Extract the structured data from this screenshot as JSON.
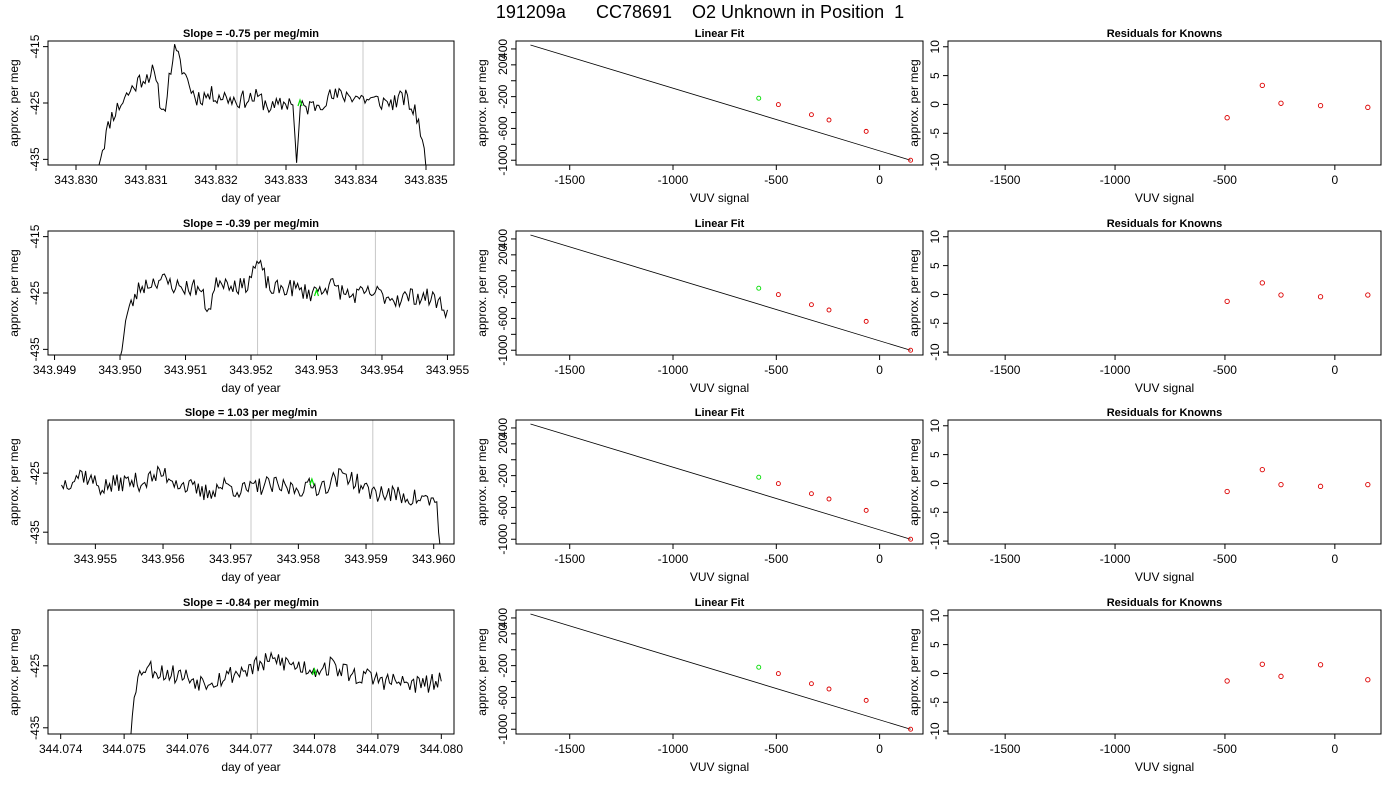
{
  "page": {
    "title": "191209a      CC78691    O2 Unknown in Position  1"
  },
  "colors": {
    "trace": "#000000",
    "marker": "#00dd00",
    "known_points": "#dd0000",
    "vertical_lines": "#c8c8c8"
  },
  "chart_data": [
    {
      "type": "line",
      "title": "Slope =  -0.75  per meg/min",
      "xlabel": "day of year",
      "ylabel": "approx. per meg",
      "xlim": [
        343.8296,
        343.8354
      ],
      "ylim": [
        -436,
        -414
      ],
      "xticks": [
        343.83,
        343.831,
        343.832,
        343.833,
        343.834,
        343.835
      ],
      "xtick_labels": [
        "343.830",
        "343.831",
        "343.832",
        "343.833",
        "343.834",
        "343.835"
      ],
      "yticks": [
        -435,
        -425,
        -415
      ],
      "ytick_labels": [
        "-435",
        "-425",
        "-415"
      ],
      "vlines": [
        343.8323,
        343.8341
      ],
      "marker_x": 343.8332,
      "trace": {
        "x_start": 343.8303,
        "x_end": 343.835,
        "seed": 11,
        "anchors": [
          [
            343.8303,
            -436.5
          ],
          [
            343.8305,
            -427.5
          ],
          [
            343.8307,
            -424
          ],
          [
            343.8309,
            -421
          ],
          [
            343.8311,
            -419.5
          ],
          [
            343.83125,
            -427
          ],
          [
            343.8314,
            -415.5
          ],
          [
            343.8317,
            -424
          ],
          [
            343.832,
            -423.5
          ],
          [
            343.8323,
            -424.5
          ],
          [
            343.8326,
            -424
          ],
          [
            343.8328,
            -426
          ],
          [
            343.8331,
            -424.5
          ],
          [
            343.83315,
            -436.5
          ],
          [
            343.8332,
            -426
          ],
          [
            343.8334,
            -425.5
          ],
          [
            343.8336,
            -424
          ],
          [
            343.8339,
            -423.5
          ],
          [
            343.8342,
            -424.5
          ],
          [
            343.8345,
            -425
          ],
          [
            343.8347,
            -424
          ],
          [
            343.8349,
            -428
          ],
          [
            343.835,
            -436.5
          ]
        ]
      }
    },
    {
      "type": "line",
      "title": "Linear Fit",
      "xlabel": "VUV signal",
      "ylabel": "approx. per meg",
      "xlim": [
        -1760,
        210
      ],
      "ylim": [
        -1060,
        500
      ],
      "xticks": [
        -1500,
        -1000,
        -500,
        0
      ],
      "xtick_labels": [
        "-1500",
        "-1000",
        "-500",
        "0"
      ],
      "yticks": [
        -1000,
        -800,
        -600,
        -400,
        -200,
        0,
        200,
        400
      ],
      "ytick_labels": [
        "-1000",
        "",
        "-600",
        "",
        "-200",
        "",
        "200",
        "400"
      ],
      "fit_line": [
        [
          -1690,
          450
        ],
        [
          150,
          -1000
        ]
      ],
      "knowns": {
        "x": [
          -490,
          -330,
          -245,
          -65,
          150
        ],
        "y": [
          -300,
          -427,
          -494,
          -637,
          -1000
        ]
      },
      "unknown": {
        "x": [
          -585
        ],
        "y": [
          -220
        ]
      }
    },
    {
      "type": "scatter",
      "title": "Residuals for Knowns",
      "xlabel": "VUV signal",
      "ylabel": "approx. per meg",
      "xlim": [
        -1760,
        210
      ],
      "ylim": [
        -10.5,
        11
      ],
      "xticks": [
        -1500,
        -1000,
        -500,
        0
      ],
      "xtick_labels": [
        "-1500",
        "-1000",
        "-500",
        "0"
      ],
      "yticks": [
        -10,
        -5,
        0,
        5,
        10
      ],
      "ytick_labels": [
        "-10",
        "-5",
        "0",
        "5",
        "10"
      ],
      "points": {
        "x": [
          -490,
          -330,
          -245,
          -65,
          150
        ],
        "y": [
          -2.3,
          3.3,
          0.2,
          -0.2,
          -0.5
        ]
      }
    },
    {
      "type": "line",
      "title": "Slope =  -0.39  per meg/min",
      "xlabel": "day of year",
      "ylabel": "approx. per meg",
      "xlim": [
        343.9489,
        343.9551
      ],
      "ylim": [
        -436,
        -414
      ],
      "xticks": [
        343.949,
        343.95,
        343.951,
        343.952,
        343.953,
        343.954,
        343.955
      ],
      "xtick_labels": [
        "343.949",
        "343.950",
        "343.951",
        "343.952",
        "343.953",
        "343.954",
        "343.955"
      ],
      "yticks": [
        -435,
        -425,
        -415
      ],
      "ytick_labels": [
        "-435",
        "-425",
        "-415"
      ],
      "vlines": [
        343.9521,
        343.9539
      ],
      "marker_x": 343.953,
      "trace": {
        "x_start": 343.95,
        "x_end": 343.955,
        "seed": 23,
        "anchors": [
          [
            343.95,
            -436.5
          ],
          [
            343.9501,
            -429
          ],
          [
            343.9503,
            -424
          ],
          [
            343.9506,
            -422.5
          ],
          [
            343.9509,
            -424
          ],
          [
            343.9512,
            -424
          ],
          [
            343.95135,
            -428
          ],
          [
            343.9515,
            -422.5
          ],
          [
            343.9519,
            -424
          ],
          [
            343.9521,
            -419.5
          ],
          [
            343.9523,
            -424.5
          ],
          [
            343.9526,
            -424
          ],
          [
            343.9529,
            -425
          ],
          [
            343.9532,
            -423.5
          ],
          [
            343.9535,
            -425.5
          ],
          [
            343.9539,
            -425
          ],
          [
            343.9542,
            -426
          ],
          [
            343.9545,
            -425.5
          ],
          [
            343.9548,
            -426
          ],
          [
            343.955,
            -428
          ]
        ]
      }
    },
    {
      "type": "line",
      "title": "Linear Fit",
      "xlabel": "VUV signal",
      "ylabel": "approx. per meg",
      "xlim": [
        -1760,
        210
      ],
      "ylim": [
        -1060,
        500
      ],
      "xticks": [
        -1500,
        -1000,
        -500,
        0
      ],
      "xtick_labels": [
        "-1500",
        "-1000",
        "-500",
        "0"
      ],
      "yticks": [
        -1000,
        -800,
        -600,
        -400,
        -200,
        0,
        200,
        400
      ],
      "ytick_labels": [
        "-1000",
        "",
        "-600",
        "",
        "-200",
        "",
        "200",
        "400"
      ],
      "fit_line": [
        [
          -1690,
          450
        ],
        [
          150,
          -1000
        ]
      ],
      "knowns": {
        "x": [
          -490,
          -330,
          -245,
          -65,
          150
        ],
        "y": [
          -300,
          -427,
          -494,
          -637,
          -1000
        ]
      },
      "unknown": {
        "x": [
          -585
        ],
        "y": [
          -220
        ]
      }
    },
    {
      "type": "scatter",
      "title": "Residuals for Knowns",
      "xlabel": "VUV signal",
      "ylabel": "approx. per meg",
      "xlim": [
        -1760,
        210
      ],
      "ylim": [
        -10.5,
        11
      ],
      "xticks": [
        -1500,
        -1000,
        -500,
        0
      ],
      "xtick_labels": [
        "-1500",
        "-1000",
        "-500",
        "0"
      ],
      "yticks": [
        -10,
        -5,
        0,
        5,
        10
      ],
      "ytick_labels": [
        "-10",
        "-5",
        "0",
        "5",
        "10"
      ],
      "points": {
        "x": [
          -490,
          -330,
          -245,
          -65,
          150
        ],
        "y": [
          -1.2,
          2.0,
          -0.1,
          -0.4,
          -0.1
        ]
      }
    },
    {
      "type": "line",
      "title": "Slope =  1.03  per meg/min",
      "xlabel": "day of year",
      "ylabel": "approx. per meg",
      "xlim": [
        343.9543,
        343.9603
      ],
      "ylim": [
        -437,
        -416
      ],
      "xticks": [
        343.955,
        343.956,
        343.957,
        343.958,
        343.959,
        343.96
      ],
      "xtick_labels": [
        "343.955",
        "343.956",
        "343.957",
        "343.958",
        "343.959",
        "343.960"
      ],
      "yticks": [
        -435,
        -425
      ],
      "ytick_labels": [
        "-435",
        "-425"
      ],
      "vlines": [
        343.9573,
        343.9591
      ],
      "marker_x": 343.9582,
      "trace": {
        "x_start": 343.9545,
        "x_end": 343.9601,
        "seed": 37,
        "anchors": [
          [
            343.9545,
            -427
          ],
          [
            343.9548,
            -425
          ],
          [
            343.9551,
            -427.5
          ],
          [
            343.9554,
            -426.5
          ],
          [
            343.9557,
            -426.5
          ],
          [
            343.956,
            -425
          ],
          [
            343.9563,
            -427
          ],
          [
            343.9566,
            -428.5
          ],
          [
            343.9569,
            -427
          ],
          [
            343.9572,
            -428
          ],
          [
            343.9575,
            -427
          ],
          [
            343.9578,
            -427.5
          ],
          [
            343.9581,
            -427.5
          ],
          [
            343.9584,
            -427
          ],
          [
            343.9587,
            -425
          ],
          [
            343.959,
            -428
          ],
          [
            343.9593,
            -428.5
          ],
          [
            343.9596,
            -429
          ],
          [
            343.9599,
            -429.5
          ],
          [
            343.96005,
            -430
          ],
          [
            343.9601,
            -438
          ]
        ]
      }
    },
    {
      "type": "line",
      "title": "Linear Fit",
      "xlabel": "VUV signal",
      "ylabel": "approx. per meg",
      "xlim": [
        -1760,
        210
      ],
      "ylim": [
        -1060,
        500
      ],
      "xticks": [
        -1500,
        -1000,
        -500,
        0
      ],
      "xtick_labels": [
        "-1500",
        "-1000",
        "-500",
        "0"
      ],
      "yticks": [
        -1000,
        -800,
        -600,
        -400,
        -200,
        0,
        200,
        400
      ],
      "ytick_labels": [
        "-1000",
        "",
        "-600",
        "",
        "-200",
        "",
        "200",
        "400"
      ],
      "fit_line": [
        [
          -1690,
          450
        ],
        [
          150,
          -1000
        ]
      ],
      "knowns": {
        "x": [
          -490,
          -330,
          -245,
          -65,
          150
        ],
        "y": [
          -300,
          -427,
          -494,
          -637,
          -1000
        ]
      },
      "unknown": {
        "x": [
          -585
        ],
        "y": [
          -220
        ]
      }
    },
    {
      "type": "scatter",
      "title": "Residuals for Knowns",
      "xlabel": "VUV signal",
      "ylabel": "approx. per meg",
      "xlim": [
        -1760,
        210
      ],
      "ylim": [
        -10.5,
        11
      ],
      "xticks": [
        -1500,
        -1000,
        -500,
        0
      ],
      "xtick_labels": [
        "-1500",
        "-1000",
        "-500",
        "0"
      ],
      "yticks": [
        -10,
        -5,
        0,
        5,
        10
      ],
      "ytick_labels": [
        "-10",
        "-5",
        "0",
        "5",
        "10"
      ],
      "points": {
        "x": [
          -490,
          -330,
          -245,
          -65,
          150
        ],
        "y": [
          -1.4,
          2.4,
          -0.2,
          -0.5,
          -0.2
        ]
      }
    },
    {
      "type": "line",
      "title": "Slope =  -0.84  per meg/min",
      "xlabel": "day of year",
      "ylabel": "approx. per meg",
      "xlim": [
        344.0738,
        344.0802
      ],
      "ylim": [
        -436,
        -416
      ],
      "xticks": [
        344.074,
        344.075,
        344.076,
        344.077,
        344.078,
        344.079,
        344.08
      ],
      "xtick_labels": [
        "344.074",
        "344.075",
        "344.076",
        "344.077",
        "344.078",
        "344.079",
        "344.080"
      ],
      "yticks": [
        -435,
        -425
      ],
      "ytick_labels": [
        "-435",
        "-425"
      ],
      "vlines": [
        344.0771,
        344.0789
      ],
      "marker_x": 344.078,
      "trace": {
        "x_start": 344.0751,
        "x_end": 344.08,
        "seed": 53,
        "anchors": [
          [
            344.0751,
            -437
          ],
          [
            344.07515,
            -429
          ],
          [
            344.0753,
            -425
          ],
          [
            344.0756,
            -426
          ],
          [
            344.0759,
            -426.5
          ],
          [
            344.0762,
            -427.5
          ],
          [
            344.0765,
            -427
          ],
          [
            344.0768,
            -426
          ],
          [
            344.0771,
            -425
          ],
          [
            344.0774,
            -424
          ],
          [
            344.0777,
            -425
          ],
          [
            344.078,
            -425.5
          ],
          [
            344.0783,
            -425
          ],
          [
            344.0786,
            -426.5
          ],
          [
            344.0789,
            -427
          ],
          [
            344.0792,
            -427.5
          ],
          [
            344.0795,
            -428
          ],
          [
            344.0798,
            -428
          ],
          [
            344.08,
            -427.5
          ]
        ]
      }
    },
    {
      "type": "line",
      "title": "Linear Fit",
      "xlabel": "VUV signal",
      "ylabel": "approx. per meg",
      "xlim": [
        -1760,
        210
      ],
      "ylim": [
        -1060,
        500
      ],
      "xticks": [
        -1500,
        -1000,
        -500,
        0
      ],
      "xtick_labels": [
        "-1500",
        "-1000",
        "-500",
        "0"
      ],
      "yticks": [
        -1000,
        -800,
        -600,
        -400,
        -200,
        0,
        200,
        400
      ],
      "ytick_labels": [
        "-1000",
        "",
        "-600",
        "",
        "-200",
        "",
        "200",
        "400"
      ],
      "fit_line": [
        [
          -1690,
          450
        ],
        [
          150,
          -1000
        ]
      ],
      "knowns": {
        "x": [
          -490,
          -330,
          -245,
          -65,
          150
        ],
        "y": [
          -300,
          -427,
          -494,
          -637,
          -1000
        ]
      },
      "unknown": {
        "x": [
          -585
        ],
        "y": [
          -220
        ]
      }
    },
    {
      "type": "scatter",
      "title": "Residuals for Knowns",
      "xlabel": "VUV signal",
      "ylabel": "approx. per meg",
      "xlim": [
        -1760,
        210
      ],
      "ylim": [
        -10.5,
        11
      ],
      "xticks": [
        -1500,
        -1000,
        -500,
        0
      ],
      "xtick_labels": [
        "-1500",
        "-1000",
        "-500",
        "0"
      ],
      "yticks": [
        -10,
        -5,
        0,
        5,
        10
      ],
      "ytick_labels": [
        "-10",
        "-5",
        "0",
        "5",
        "10"
      ],
      "points": {
        "x": [
          -490,
          -330,
          -245,
          -65,
          150
        ],
        "y": [
          -1.3,
          1.6,
          -0.5,
          1.5,
          -1.1
        ]
      }
    }
  ]
}
